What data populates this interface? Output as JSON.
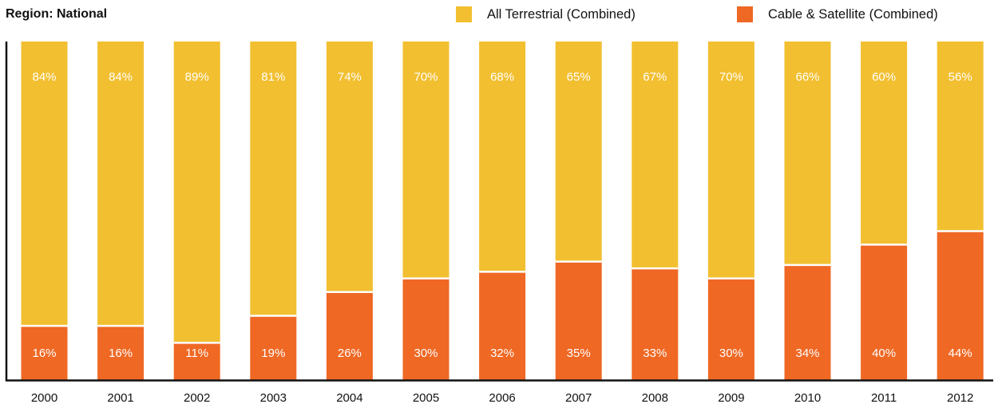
{
  "region_label": "Region: National",
  "legend": {
    "terrestrial": "All Terrestrial (Combined)",
    "cable": "Cable & Satellite (Combined)"
  },
  "colors": {
    "terrestrial": "#F2BF30",
    "cable": "#EF6824",
    "axis": "#111111"
  },
  "chart_data": {
    "type": "bar",
    "stacked": true,
    "percent_stacked": true,
    "categories": [
      "2000",
      "2001",
      "2002",
      "2003",
      "2004",
      "2005",
      "2006",
      "2007",
      "2008",
      "2009",
      "2010",
      "2011",
      "2012"
    ],
    "series": [
      {
        "name": "All Terrestrial (Combined)",
        "values": [
          84,
          84,
          89,
          81,
          74,
          70,
          68,
          65,
          67,
          70,
          66,
          60,
          56
        ],
        "labels": [
          "84%",
          "84%",
          "89%",
          "81%",
          "74%",
          "70%",
          "68%",
          "65%",
          "67%",
          "70%",
          "66%",
          "60%",
          "56%"
        ]
      },
      {
        "name": "Cable & Satellite (Combined)",
        "values": [
          16,
          16,
          11,
          19,
          26,
          30,
          32,
          35,
          33,
          30,
          34,
          40,
          44
        ],
        "labels": [
          "16%",
          "16%",
          "11%",
          "19%",
          "26%",
          "30%",
          "32%",
          "35%",
          "33%",
          "30%",
          "34%",
          "40%",
          "44%"
        ]
      }
    ],
    "ylim": [
      0,
      100
    ],
    "legend_position": "top-right",
    "grid": false
  }
}
